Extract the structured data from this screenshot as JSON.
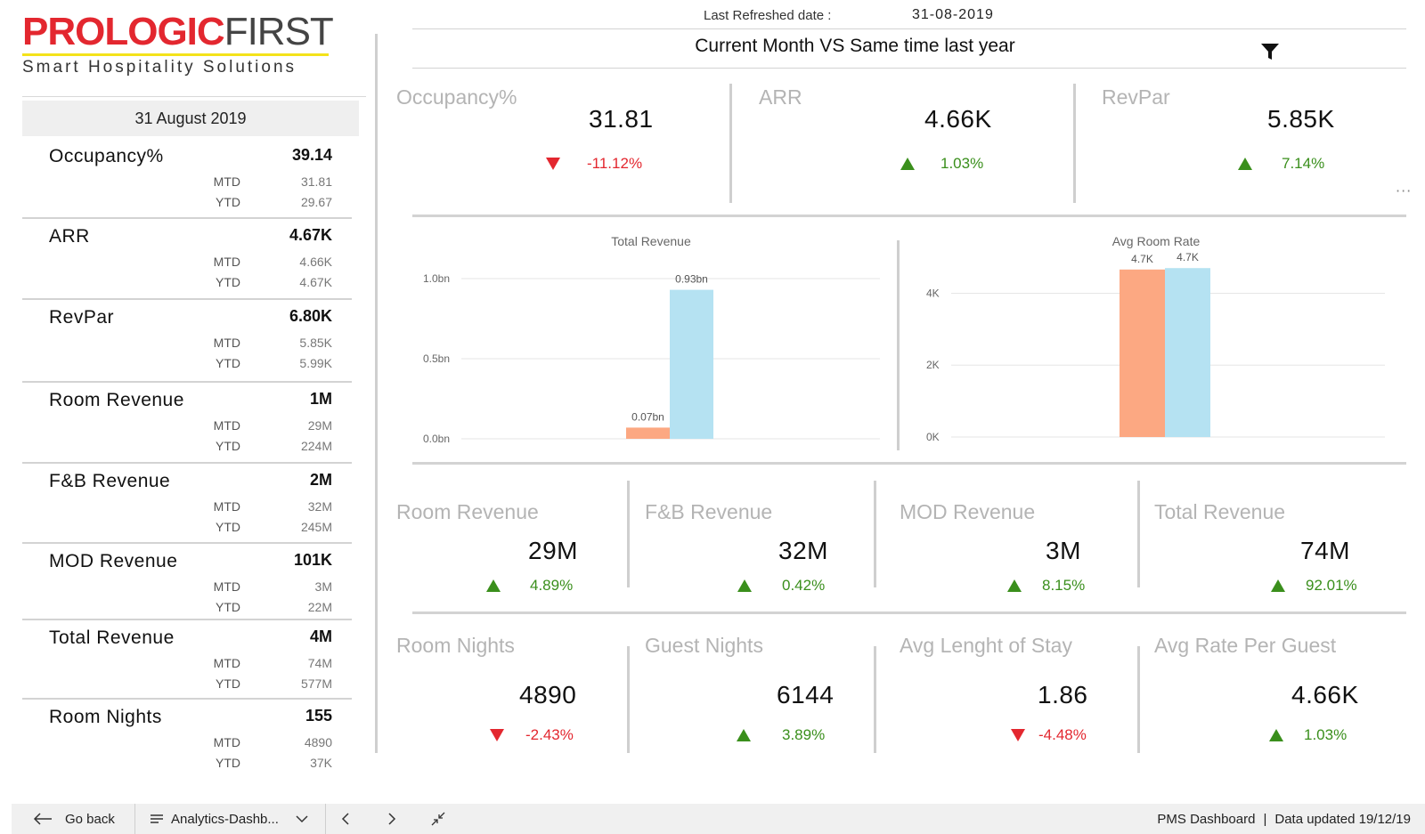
{
  "logo": {
    "brand_bold": "PROLOGIC",
    "brand_light": "FIRST",
    "tagline": "Smart Hospitality Solutions"
  },
  "left_panel": {
    "date": "31 August 2019",
    "mtd_label": "MTD",
    "ytd_label": "YTD",
    "metrics": [
      {
        "name": "Occupancy%",
        "value": "39.14",
        "mtd": "31.81",
        "ytd": "29.67"
      },
      {
        "name": "ARR",
        "value": "4.67K",
        "mtd": "4.66K",
        "ytd": "4.67K"
      },
      {
        "name": "RevPar",
        "value": "6.80K",
        "mtd": "5.85K",
        "ytd": "5.99K"
      },
      {
        "name": "Room Revenue",
        "value": "1M",
        "mtd": "29M",
        "ytd": "224M"
      },
      {
        "name": "F&B Revenue",
        "value": "2M",
        "mtd": "32M",
        "ytd": "245M"
      },
      {
        "name": "MOD Revenue",
        "value": "101K",
        "mtd": "3M",
        "ytd": "22M"
      },
      {
        "name": "Total Revenue",
        "value": "4M",
        "mtd": "74M",
        "ytd": "577M"
      },
      {
        "name": "Room Nights",
        "value": "155",
        "mtd": "4890",
        "ytd": "37K"
      }
    ]
  },
  "header": {
    "refresh_label": "Last Refreshed date :",
    "refresh_date": "31-08-2019",
    "subtitle": "Current Month VS Same time last year"
  },
  "kpi_row1": [
    {
      "title": "Occupancy%",
      "value": "31.81",
      "change": "-11.12%",
      "direction": "down"
    },
    {
      "title": "ARR",
      "value": "4.66K",
      "change": "1.03%",
      "direction": "up"
    },
    {
      "title": "RevPar",
      "value": "5.85K",
      "change": "7.14%",
      "direction": "up"
    }
  ],
  "kpi_row2": [
    {
      "title": "Room Revenue",
      "value": "29M",
      "change": "4.89%",
      "direction": "up"
    },
    {
      "title": "F&B Revenue",
      "value": "32M",
      "change": "0.42%",
      "direction": "up"
    },
    {
      "title": "MOD Revenue",
      "value": "3M",
      "change": "8.15%",
      "direction": "up"
    },
    {
      "title": "Total Revenue",
      "value": "74M",
      "change": "92.01%",
      "direction": "up"
    }
  ],
  "kpi_row3": [
    {
      "title": "Room Nights",
      "value": "4890",
      "change": "-2.43%",
      "direction": "down"
    },
    {
      "title": "Guest Nights",
      "value": "6144",
      "change": "3.89%",
      "direction": "up"
    },
    {
      "title": "Avg Lenght of Stay",
      "value": "1.86",
      "change": "-4.48%",
      "direction": "down"
    },
    {
      "title": "Avg Rate Per Guest",
      "value": "4.66K",
      "change": "1.03%",
      "direction": "up"
    }
  ],
  "colors": {
    "bar_a": "#fca882",
    "bar_b": "#b5e2f2",
    "up": "#3a8f1c",
    "down": "#e3272f",
    "logo_red": "#e3272f",
    "logo_yellow": "#f4e21a"
  },
  "chart_data": [
    {
      "type": "bar",
      "title": "Total Revenue",
      "categories": [
        "",
        ""
      ],
      "values": [
        0.07,
        0.93
      ],
      "data_labels": [
        "0.07bn",
        "0.93bn"
      ],
      "ylim": [
        0,
        1.0
      ],
      "y_ticks": [
        0.0,
        0.5,
        1.0
      ],
      "y_tick_labels": [
        "0.0bn",
        "0.5bn",
        "1.0bn"
      ],
      "grid": true
    },
    {
      "type": "bar",
      "title": "Avg Room Rate",
      "categories": [
        "",
        ""
      ],
      "values": [
        4.66,
        4.7
      ],
      "data_labels": [
        "4.7K",
        "4.7K"
      ],
      "ylim": [
        0,
        5.2
      ],
      "y_ticks": [
        0,
        2,
        4
      ],
      "y_tick_labels": [
        "0K",
        "2K",
        "4K"
      ],
      "grid": true
    }
  ],
  "bottom_bar": {
    "go_back": "Go back",
    "page_menu": "Analytics-Dashb...",
    "status_left": "PMS Dashboard",
    "status_sep": "|",
    "status_right": "Data updated 19/12/19"
  }
}
